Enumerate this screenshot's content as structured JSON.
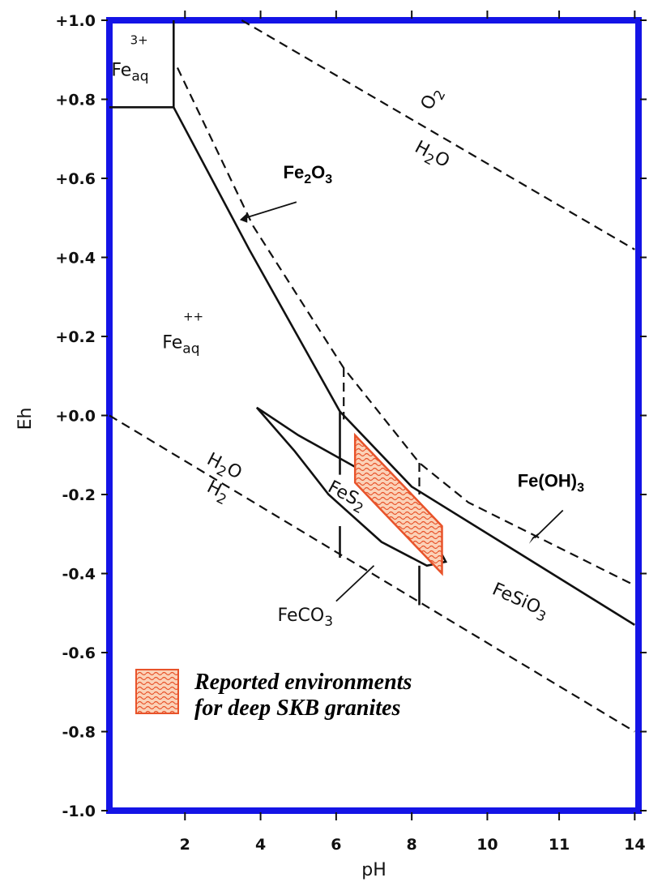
{
  "chart_data": {
    "type": "line",
    "xlabel": "pH",
    "ylabel": "Eh",
    "xlim": [
      0,
      14
    ],
    "ylim": [
      -1.0,
      1.0
    ],
    "x_ticks": [
      "2",
      "4",
      "6",
      "8",
      "10",
      "11",
      "14"
    ],
    "y_ticks": [
      "+1.0",
      "+0.8",
      "+0.6",
      "+0.4",
      "+0.2",
      "+0.0",
      "-0.2",
      "-0.4",
      "-0.6",
      "-0.8",
      "-1.0"
    ],
    "regions": [
      {
        "label": "Fe",
        "superscript": "3+",
        "subscript": "aq"
      },
      {
        "label": "Fe",
        "superscript": "++",
        "subscript": "aq"
      },
      {
        "label": "FeS",
        "subscript": "2"
      },
      {
        "label": "FeCO",
        "subscript": "3"
      },
      {
        "label": "FeSiO",
        "subscript": "3"
      }
    ],
    "water_lines": [
      {
        "upper": "O",
        "upper_sub": "2",
        "lower": "H",
        "lower_sub": "2",
        "lower_tail": "O"
      },
      {
        "upper": "H",
        "upper_sub": "2",
        "upper_tail": "O",
        "lower": "H",
        "lower_sub": "2"
      }
    ],
    "callouts": [
      {
        "label": "Fe",
        "sub1": "2",
        "mid": "O",
        "sub2": "3"
      },
      {
        "label": "Fe(OH)",
        "sub1": "3"
      }
    ],
    "series": [
      {
        "style": "solid",
        "x": [
          0,
          1.7,
          1.7
        ],
        "y": [
          0.78,
          0.78,
          1.0
        ]
      },
      {
        "style": "solid",
        "x": [
          1.7,
          3.7,
          6.1,
          6.1
        ],
        "y": [
          0.78,
          0.42,
          0.01,
          -0.15
        ]
      },
      {
        "style": "solid",
        "x": [
          6.1,
          8.0,
          13.9
        ],
        "y": [
          0.01,
          -0.18,
          -0.53
        ]
      },
      {
        "style": "solid",
        "x": [
          6.1,
          6.1
        ],
        "y": [
          -0.28,
          -0.36
        ]
      },
      {
        "style": "solid",
        "x": [
          8.2,
          8.2
        ],
        "y": [
          -0.38,
          -0.48
        ]
      },
      {
        "style": "dashed",
        "x": [
          1.8,
          3.8,
          6.2,
          8.2,
          9.5,
          13.9
        ],
        "y": [
          0.88,
          0.48,
          0.12,
          -0.12,
          -0.22,
          -0.43
        ]
      },
      {
        "style": "dashed",
        "x": [
          6.2,
          6.2
        ],
        "y": [
          0.12,
          -0.01
        ]
      },
      {
        "style": "dashed",
        "x": [
          8.2,
          8.2
        ],
        "y": [
          -0.12,
          -0.2
        ]
      },
      {
        "style": "dashed",
        "x": [
          3.5,
          13.9
        ],
        "y": [
          1.0,
          0.42
        ]
      },
      {
        "style": "dashed",
        "x": [
          0,
          13.9
        ],
        "y": [
          0.0,
          -0.8
        ]
      },
      {
        "style": "solid",
        "closed": true,
        "x": [
          3.9,
          5.0,
          6.5,
          8.4,
          8.9,
          8.4,
          7.2,
          5.8,
          4.9
        ],
        "y": [
          0.02,
          -0.05,
          -0.13,
          -0.28,
          -0.37,
          -0.38,
          -0.32,
          -0.2,
          -0.09
        ]
      }
    ],
    "highlight": {
      "name": "Reported environments for deep SKB granites",
      "color": "#e8532a",
      "x": [
        6.5,
        8.8,
        8.8,
        6.5
      ],
      "y": [
        -0.05,
        -0.28,
        -0.4,
        -0.17
      ]
    },
    "legend": {
      "line1": "Reported environments",
      "line2": "for deep SKB granites",
      "position": "bottom-left"
    },
    "grid": false
  },
  "colors": {
    "frame": "#1414e6",
    "ink": "#111111",
    "highlight": "#e8532a",
    "highlight_fill": "#fbd2b8"
  }
}
